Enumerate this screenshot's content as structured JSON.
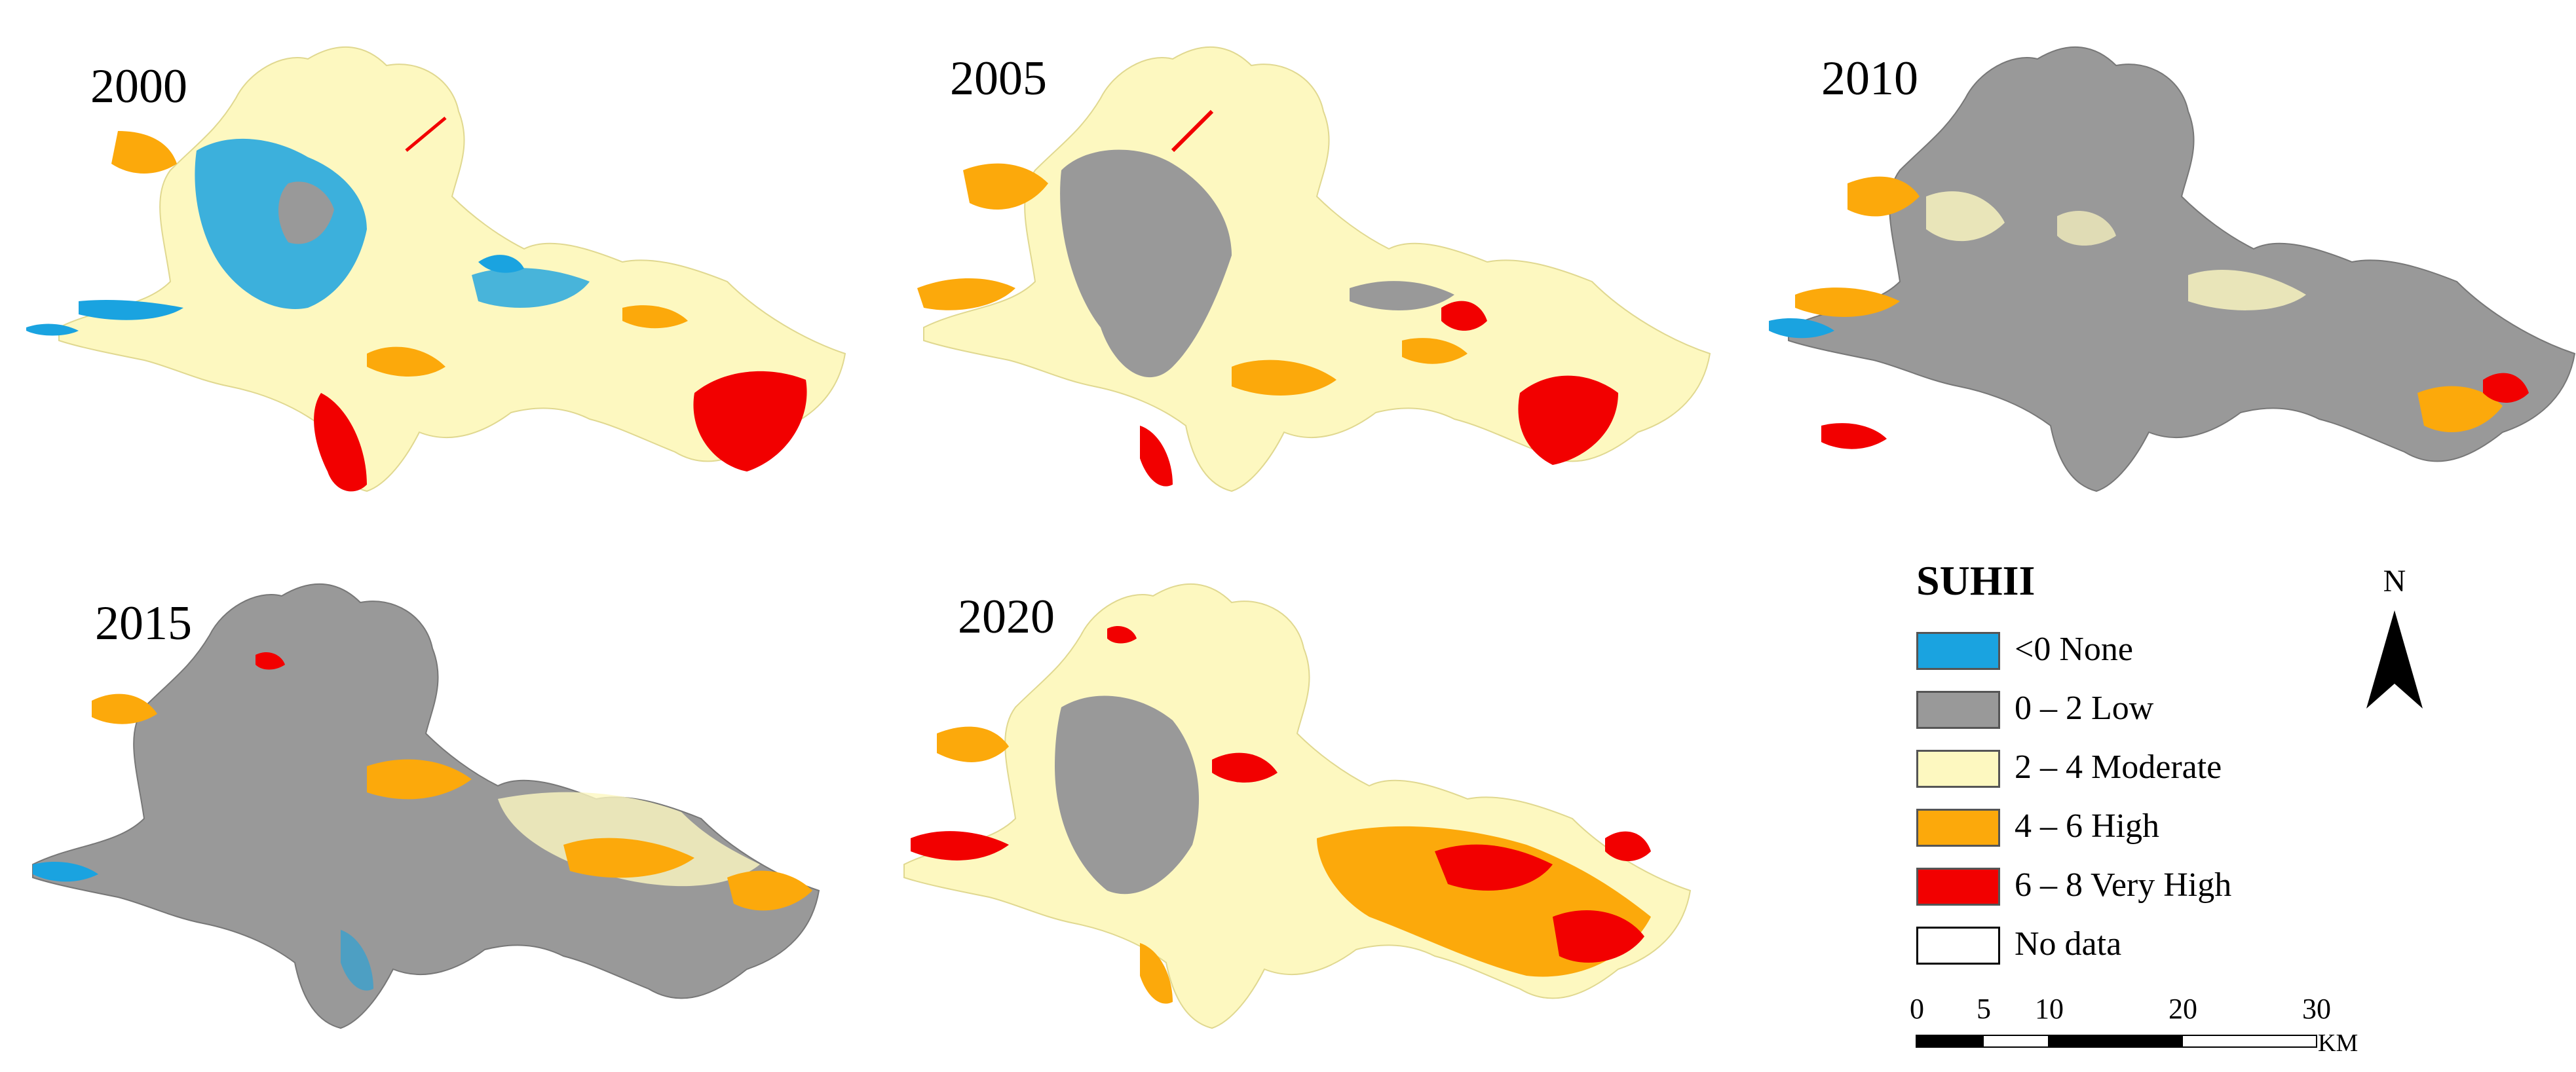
{
  "maps": [
    {
      "year": "2000"
    },
    {
      "year": "2005"
    },
    {
      "year": "2010"
    },
    {
      "year": "2015"
    },
    {
      "year": "2020"
    }
  ],
  "legend": {
    "title": "SUHII",
    "items": [
      {
        "label": "<0 None",
        "color": "#1aa3e0"
      },
      {
        "label": "0 – 2 Low",
        "color": "#999999"
      },
      {
        "label": "2 – 4 Moderate",
        "color": "#fdf8c0"
      },
      {
        "label": "4 – 6 High",
        "color": "#fca90b"
      },
      {
        "label": "6 – 8 Very High",
        "color": "#f20000"
      },
      {
        "label": "No data",
        "color": "#ffffff"
      }
    ]
  },
  "north_arrow": {
    "label": "N"
  },
  "scale_bar": {
    "ticks": [
      "0",
      "5",
      "10",
      "20",
      "30"
    ],
    "unit": "KM"
  }
}
